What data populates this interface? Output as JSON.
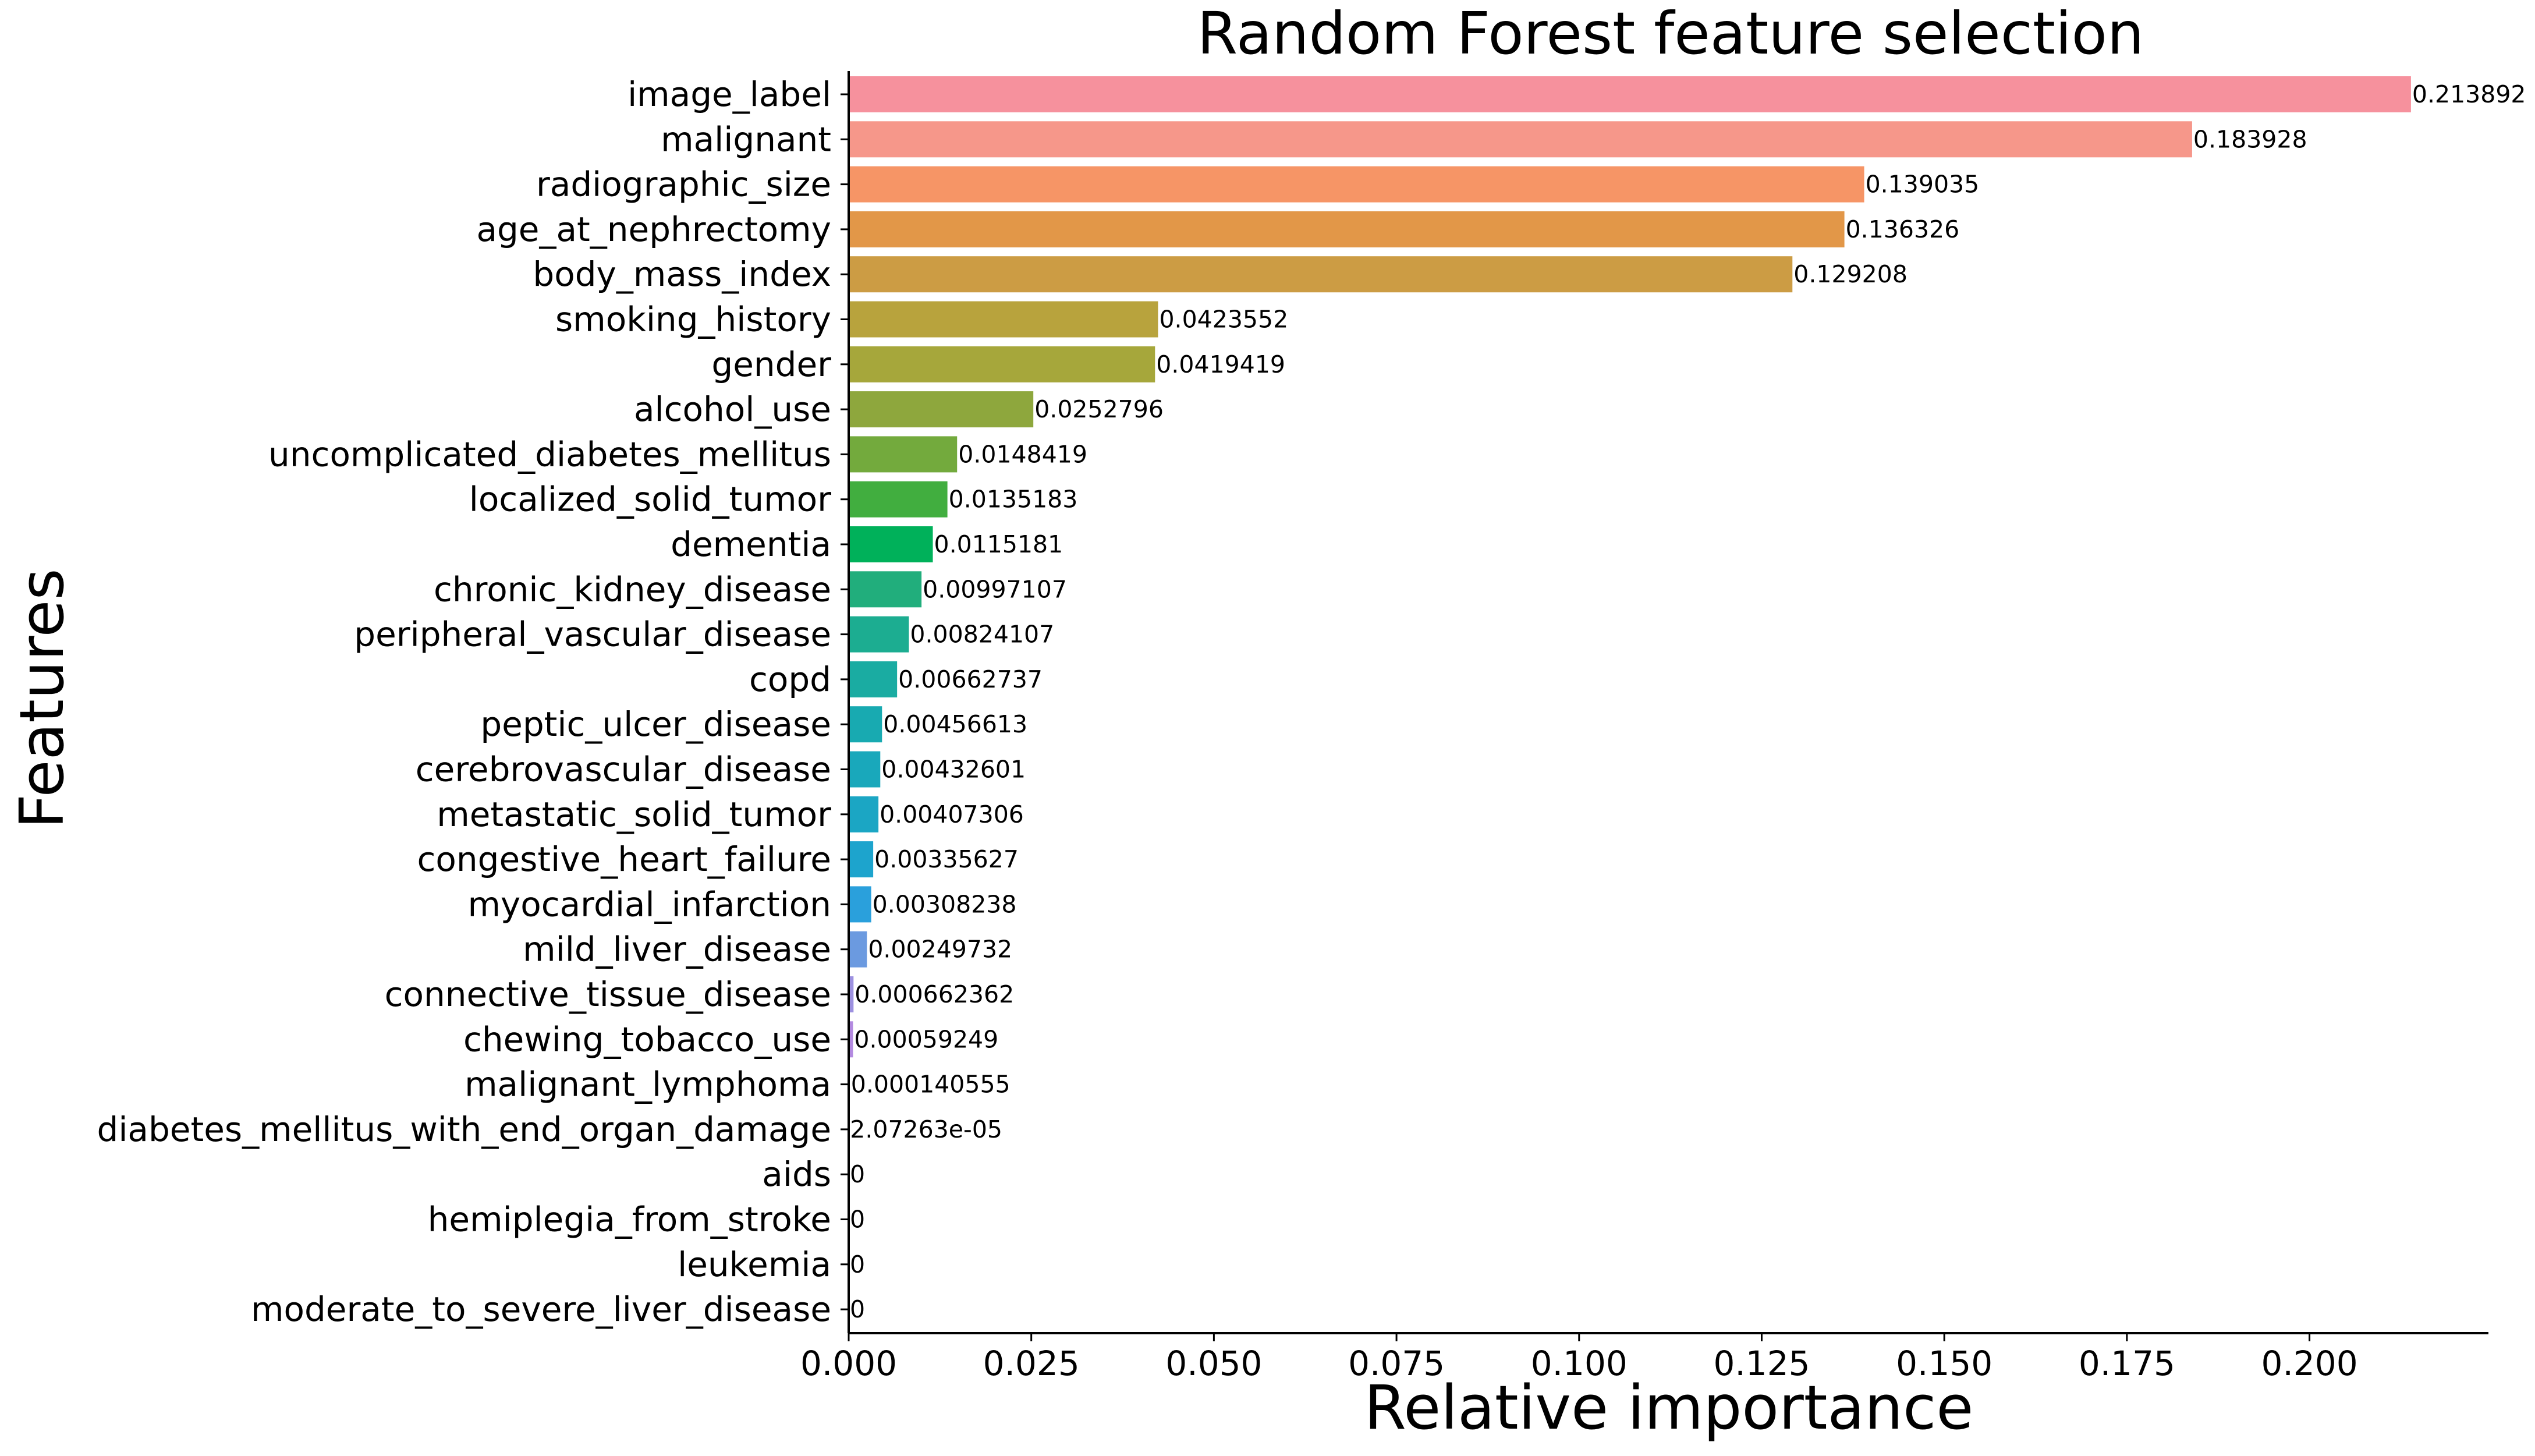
{
  "chart_data": {
    "type": "bar",
    "orientation": "horizontal",
    "title": "Random Forest feature selection",
    "xlabel": "Relative importance",
    "ylabel": "Features",
    "xlim": [
      0,
      0.2245
    ],
    "xticks": [
      0.0,
      0.025,
      0.05,
      0.075,
      0.1,
      0.125,
      0.15,
      0.175,
      0.2
    ],
    "xtick_labels": [
      "0.000",
      "0.025",
      "0.050",
      "0.075",
      "0.100",
      "0.125",
      "0.150",
      "0.175",
      "0.200"
    ],
    "grid": false,
    "legend": false,
    "categories": [
      "image_label",
      "malignant",
      "radiographic_size",
      "age_at_nephrectomy",
      "body_mass_index",
      "smoking_history",
      "gender",
      "alcohol_use",
      "uncomplicated_diabetes_mellitus",
      "localized_solid_tumor",
      "dementia",
      "chronic_kidney_disease",
      "peripheral_vascular_disease",
      "copd",
      "peptic_ulcer_disease",
      "cerebrovascular_disease",
      "metastatic_solid_tumor",
      "congestive_heart_failure",
      "myocardial_infarction",
      "mild_liver_disease",
      "connective_tissue_disease",
      "chewing_tobacco_use",
      "malignant_lymphoma",
      "diabetes_mellitus_with_end_organ_damage",
      "aids",
      "hemiplegia_from_stroke",
      "leukemia",
      "moderate_to_severe_liver_disease"
    ],
    "values": [
      0.213892,
      0.183928,
      0.139035,
      0.136326,
      0.129208,
      0.0423552,
      0.0419419,
      0.0252796,
      0.0148419,
      0.0135183,
      0.0115181,
      0.00997107,
      0.00824107,
      0.00662737,
      0.00456613,
      0.00432601,
      0.00407306,
      0.00335627,
      0.00308238,
      0.00249732,
      0.000662362,
      0.00059249,
      0.000140555,
      2.07263e-05,
      0,
      0,
      0,
      0
    ],
    "value_labels": [
      "0.213892",
      "0.183928",
      "0.139035",
      "0.136326",
      "0.129208",
      "0.0423552",
      "0.0419419",
      "0.0252796",
      "0.0148419",
      "0.0135183",
      "0.0115181",
      "0.00997107",
      "0.00824107",
      "0.00662737",
      "0.00456613",
      "0.00432601",
      "0.00407306",
      "0.00335627",
      "0.00308238",
      "0.00249732",
      "0.000662362",
      "0.00059249",
      "0.000140555",
      "2.07263e-05",
      "0",
      "0",
      "0",
      "0"
    ],
    "colors": [
      "#f6919d",
      "#f6978a",
      "#f69566",
      "#e29748",
      "#cc9c44",
      "#b8a33d",
      "#a6a73b",
      "#8ea73d",
      "#73aa3d",
      "#41ae3f",
      "#00b15a",
      "#21ae7c",
      "#1cad91",
      "#1aaca2",
      "#18aab1",
      "#19a8bb",
      "#1ba6c4",
      "#1da4cd",
      "#2aa0dc",
      "#6b9ae0",
      "#9d91e0",
      "#b38ae0",
      "#c97fe0",
      "#d973dd",
      "#e86dcf",
      "#f270c1",
      "#f379b0",
      "#f5859f"
    ]
  }
}
